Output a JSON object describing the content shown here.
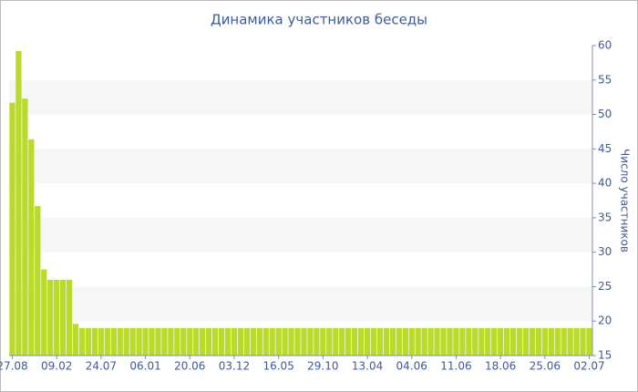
{
  "chart_data": {
    "type": "bar",
    "title": "Динамика участников беседы",
    "y_label": "Число участников",
    "categories": [
      "27.08",
      null,
      null,
      null,
      null,
      null,
      null,
      "09.02",
      null,
      null,
      null,
      null,
      null,
      null,
      "24.07",
      null,
      null,
      null,
      null,
      null,
      null,
      "06.01",
      null,
      null,
      null,
      null,
      null,
      null,
      "20.06",
      null,
      null,
      null,
      null,
      null,
      null,
      "03.12",
      null,
      null,
      null,
      null,
      null,
      null,
      "16.05",
      null,
      null,
      null,
      null,
      null,
      null,
      "29.10",
      null,
      null,
      null,
      null,
      null,
      null,
      "13.04",
      null,
      null,
      null,
      null,
      null,
      null,
      "04.06",
      null,
      null,
      null,
      null,
      null,
      null,
      "11.06",
      null,
      null,
      null,
      null,
      null,
      null,
      "18.06",
      null,
      null,
      null,
      null,
      null,
      null,
      "25.06",
      null,
      null,
      null,
      null,
      null,
      null,
      "02.07"
    ],
    "values": [
      51.7,
      59.2,
      52.3,
      46.4,
      36.7,
      27.5,
      26,
      26,
      26,
      26,
      19.6,
      19,
      19,
      19,
      19,
      19,
      19,
      19,
      19,
      19,
      19,
      19,
      19,
      19,
      19,
      19,
      19,
      19,
      19,
      19,
      19,
      19,
      19,
      19,
      19,
      19,
      19,
      19,
      19,
      19,
      19,
      19,
      19,
      19,
      19,
      19,
      19,
      19,
      19,
      19,
      19,
      19,
      19,
      19,
      19,
      19,
      19,
      19,
      19,
      19,
      19,
      19,
      19,
      19,
      19,
      19,
      19,
      19,
      19,
      19,
      19,
      19,
      19,
      19,
      19,
      19,
      19,
      19,
      19,
      19,
      19,
      19,
      19,
      19,
      19,
      19,
      19,
      19,
      19,
      19,
      19,
      19
    ],
    "color": "#bada2c",
    "ylim": [
      15,
      60
    ],
    "yticks": [
      15,
      20,
      25,
      30,
      35,
      40,
      45,
      50,
      55,
      60
    ],
    "grid": "bands",
    "y_axis_side": "right"
  }
}
